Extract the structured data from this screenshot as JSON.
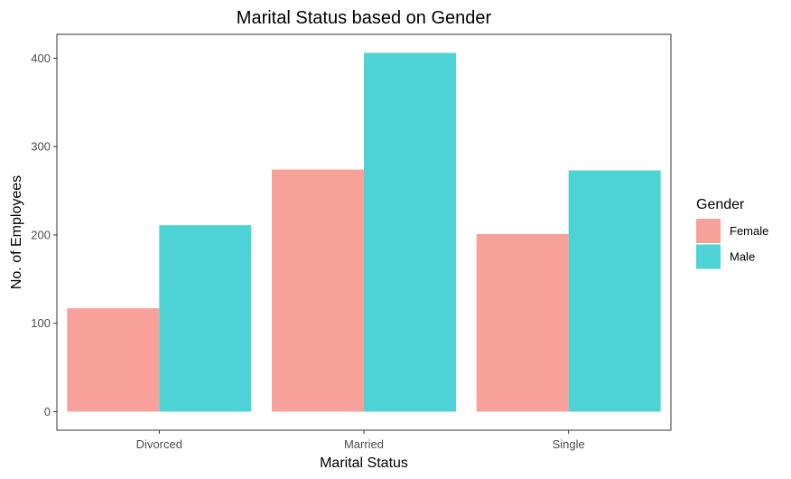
{
  "chart_data": {
    "type": "bar",
    "title": "Marital Status based on Gender",
    "xlabel": "Marital Status",
    "ylabel": "No. of Employees",
    "categories": [
      "Divorced",
      "Married",
      "Single"
    ],
    "series": [
      {
        "name": "Female",
        "color": "#F8A19B",
        "values": [
          117,
          274,
          201
        ]
      },
      {
        "name": "Male",
        "color": "#4DD2D6",
        "values": [
          211,
          406,
          273
        ]
      }
    ],
    "ylim": [
      -21,
      427
    ],
    "yticks": [
      0,
      100,
      200,
      300,
      400
    ],
    "yticklabels": [
      "0",
      "100",
      "200",
      "300",
      "400"
    ],
    "legend": {
      "title": "Gender",
      "placement": "right"
    },
    "grid": false
  }
}
